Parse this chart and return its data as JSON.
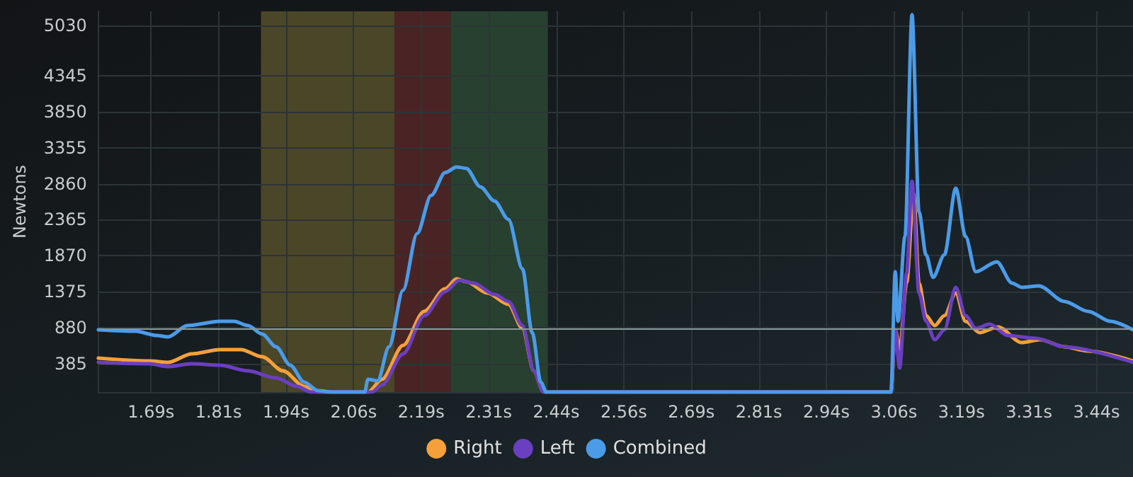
{
  "chart_data": {
    "type": "line",
    "ylabel": "Newtons",
    "xlim": [
      1.59,
      3.505
    ],
    "ylim": [
      0,
      5225
    ],
    "xticks": [
      {
        "value": 1.6875,
        "label": "1.69s"
      },
      {
        "value": 1.8125,
        "label": "1.81s"
      },
      {
        "value": 1.9375,
        "label": "1.94s"
      },
      {
        "value": 2.0625,
        "label": "2.06s"
      },
      {
        "value": 2.1875,
        "label": "2.19s"
      },
      {
        "value": 2.3125,
        "label": "2.31s"
      },
      {
        "value": 2.4375,
        "label": "2.44s"
      },
      {
        "value": 2.5625,
        "label": "2.56s"
      },
      {
        "value": 2.6875,
        "label": "2.69s"
      },
      {
        "value": 2.8125,
        "label": "2.81s"
      },
      {
        "value": 2.9375,
        "label": "2.94s"
      },
      {
        "value": 3.0625,
        "label": "3.06s"
      },
      {
        "value": 3.1875,
        "label": "3.19s"
      },
      {
        "value": 3.3125,
        "label": "3.31s"
      },
      {
        "value": 3.4375,
        "label": "3.44s"
      }
    ],
    "yticks": [
      385,
      880,
      1375,
      1870,
      2365,
      2860,
      3355,
      3850,
      4345,
      5030
    ],
    "grid": true,
    "legend": "bottom",
    "marker": "none",
    "line_style": "solid",
    "bands": [
      {
        "axis": "x",
        "from": 1.891,
        "to": 2.138,
        "color": "#4a4628"
      },
      {
        "axis": "x",
        "from": 2.138,
        "to": 2.242,
        "color": "#4a2424"
      },
      {
        "axis": "x",
        "from": 2.242,
        "to": 2.422,
        "color": "#28402f"
      }
    ],
    "ref_lines": [
      {
        "axis": "y",
        "value": 860,
        "color": "#8a9a9a"
      }
    ],
    "series": [
      {
        "name": "Right",
        "color": "#f5a03a",
        "x": [
          1.59,
          1.685,
          1.719,
          1.763,
          1.815,
          1.854,
          1.893,
          1.932,
          1.971,
          1.997,
          2.089,
          2.115,
          2.154,
          2.193,
          2.232,
          2.253,
          2.271,
          2.31,
          2.349,
          2.375,
          2.396,
          2.414,
          3.057,
          3.065,
          3.073,
          3.086,
          3.099,
          3.109,
          3.122,
          3.138,
          3.156,
          3.177,
          3.195,
          3.221,
          3.255,
          3.299,
          3.333,
          3.378,
          3.422,
          3.505
        ],
        "values": [
          466,
          427,
          408,
          525,
          583,
          583,
          486,
          291,
          78,
          0,
          0,
          175,
          641,
          1108,
          1418,
          1554,
          1515,
          1360,
          1205,
          874,
          291,
          0,
          0,
          855,
          583,
          1496,
          2720,
          1496,
          1049,
          913,
          1049,
          1360,
          972,
          816,
          894,
          680,
          719,
          622,
          563,
          427
        ]
      },
      {
        "name": "Left",
        "color": "#6a3fc0",
        "x": [
          1.59,
          1.685,
          1.719,
          1.763,
          1.815,
          1.867,
          1.919,
          1.958,
          1.984,
          2.096,
          2.115,
          2.154,
          2.193,
          2.232,
          2.258,
          2.284,
          2.323,
          2.349,
          2.375,
          2.396,
          2.414,
          3.057,
          3.065,
          3.073,
          3.086,
          3.096,
          3.109,
          3.122,
          3.138,
          3.156,
          3.177,
          3.195,
          3.214,
          3.24,
          3.273,
          3.325,
          3.378,
          3.505
        ],
        "values": [
          408,
          389,
          350,
          389,
          369,
          291,
          194,
          78,
          0,
          0,
          97,
          525,
          1049,
          1380,
          1535,
          1496,
          1341,
          1244,
          913,
          291,
          0,
          0,
          855,
          330,
          1632,
          2895,
          1360,
          972,
          719,
          855,
          1438,
          1049,
          874,
          933,
          777,
          738,
          622,
          408
        ]
      },
      {
        "name": "Combined",
        "color": "#4b9be8",
        "x": [
          1.59,
          1.659,
          1.698,
          1.719,
          1.755,
          1.815,
          1.841,
          1.867,
          1.893,
          1.919,
          1.945,
          1.971,
          1.997,
          2.023,
          2.083,
          2.089,
          2.107,
          2.128,
          2.154,
          2.18,
          2.206,
          2.232,
          2.253,
          2.271,
          2.297,
          2.323,
          2.349,
          2.375,
          2.393,
          2.409,
          2.419,
          3.057,
          3.065,
          3.07,
          3.083,
          3.096,
          3.109,
          3.122,
          3.135,
          3.156,
          3.177,
          3.195,
          3.214,
          3.253,
          3.281,
          3.299,
          3.331,
          3.378,
          3.422,
          3.463,
          3.505
        ],
        "values": [
          855,
          835,
          777,
          758,
          913,
          971,
          971,
          913,
          797,
          622,
          369,
          136,
          19,
          0,
          0,
          175,
          155,
          622,
          1399,
          2176,
          2700,
          3012,
          3089,
          3070,
          2817,
          2623,
          2370,
          1690,
          816,
          136,
          0,
          0,
          1652,
          972,
          2137,
          5180,
          2468,
          1885,
          1574,
          1885,
          2798,
          2137,
          1652,
          1788,
          1496,
          1438,
          1457,
          1244,
          1108,
          972,
          855
        ]
      }
    ]
  }
}
